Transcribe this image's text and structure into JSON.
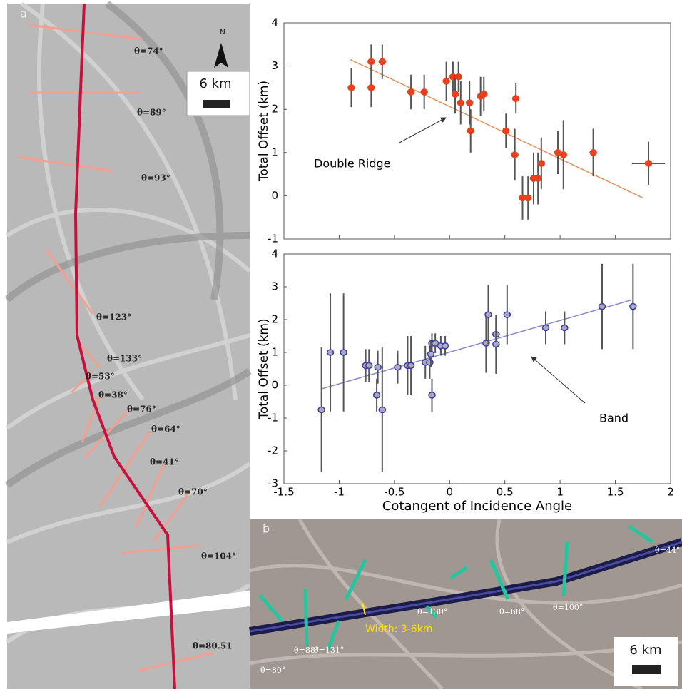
{
  "chart_data": [
    {
      "type": "scatter",
      "ylabel": "Total Offset (km)",
      "annotation": "Double Ridge",
      "color": "#e8401c",
      "fit_color": "#e8905a",
      "x": [
        -0.89,
        -0.71,
        -0.71,
        -0.61,
        -0.35,
        -0.23,
        -0.03,
        0.03,
        0.05,
        0.08,
        0.1,
        0.18,
        0.19,
        0.28,
        0.31,
        0.51,
        0.6,
        0.59,
        0.66,
        0.71,
        0.76,
        0.8,
        0.83,
        0.98,
        1.03,
        1.3,
        1.8
      ],
      "values": [
        2.5,
        2.5,
        3.1,
        3.1,
        2.4,
        2.4,
        2.65,
        2.75,
        2.35,
        2.75,
        2.15,
        2.15,
        1.5,
        2.3,
        2.35,
        1.5,
        2.25,
        0.95,
        -0.05,
        -0.05,
        0.4,
        0.4,
        0.75,
        1.0,
        0.95,
        1.0,
        0.75
      ],
      "errors": [
        0.45,
        0.45,
        0.4,
        0.4,
        0.4,
        0.4,
        0.45,
        0.35,
        0.45,
        0.35,
        0.5,
        0.5,
        0.5,
        0.45,
        0.4,
        0.4,
        0.35,
        0.6,
        0.5,
        0.5,
        0.6,
        0.6,
        0.6,
        0.5,
        0.8,
        0.55,
        0.5
      ],
      "xerrors": [
        null,
        null,
        null,
        null,
        null,
        null,
        null,
        null,
        null,
        null,
        null,
        null,
        null,
        null,
        null,
        null,
        null,
        null,
        null,
        null,
        null,
        null,
        null,
        null,
        null,
        null,
        0.15
      ],
      "fit": {
        "x": [
          -0.9,
          1.75
        ],
        "y": [
          3.15,
          -0.05
        ]
      },
      "xlim": [
        -1.5,
        2
      ],
      "ylim": [
        -1,
        4
      ],
      "yticks": [
        -1,
        0,
        1,
        2,
        3,
        4
      ],
      "xticks": [
        -1.5,
        -1,
        -0.5,
        0,
        0.5,
        1,
        1.5,
        2
      ]
    },
    {
      "type": "scatter",
      "ylabel": "Total Offset (km)",
      "xlabel": "Cotangent of Incidence Angle",
      "annotation": "Band",
      "color": "#3b3ba8",
      "fit_color": "#8a8ac8",
      "x": [
        -1.16,
        -1.08,
        -0.96,
        -0.76,
        -0.73,
        -0.65,
        -0.66,
        -0.61,
        -0.47,
        -0.38,
        -0.35,
        -0.22,
        -0.18,
        -0.16,
        -0.16,
        -0.13,
        -0.17,
        -0.08,
        -0.04,
        0.33,
        0.35,
        0.42,
        0.42,
        0.52,
        0.87,
        1.04,
        1.38,
        1.66
      ],
      "values": [
        -0.75,
        1.0,
        1.0,
        0.6,
        0.6,
        0.55,
        -0.3,
        -0.75,
        0.55,
        0.6,
        0.6,
        0.7,
        0.7,
        -0.3,
        1.28,
        1.28,
        0.95,
        1.2,
        1.2,
        1.28,
        2.15,
        1.55,
        1.25,
        2.15,
        1.75,
        1.75,
        2.4,
        2.4
      ],
      "errors": [
        1.9,
        1.8,
        1.8,
        0.5,
        0.5,
        0.5,
        0.5,
        1.9,
        0.5,
        0.9,
        0.9,
        0.5,
        0.5,
        0.5,
        0.3,
        0.3,
        0.4,
        0.3,
        0.3,
        0.9,
        0.9,
        0.5,
        0.9,
        0.9,
        0.5,
        0.5,
        1.3,
        1.3
      ],
      "xerrors": [
        null,
        null,
        null,
        null,
        null,
        null,
        null,
        null,
        null,
        null,
        null,
        null,
        null,
        null,
        null,
        null,
        null,
        null,
        null,
        null,
        null,
        null,
        null,
        null,
        null,
        null,
        null,
        null
      ],
      "fit": {
        "x": [
          -1.15,
          1.65
        ],
        "y": [
          -0.1,
          2.6
        ]
      },
      "xlim": [
        -1.5,
        2
      ],
      "ylim": [
        -3,
        4
      ],
      "yticks": [
        -3,
        -2,
        -1,
        0,
        1,
        2,
        3,
        4
      ],
      "xticks": [
        -1.5,
        -1,
        -0.5,
        0,
        0.5,
        1,
        1.5,
        2
      ]
    }
  ],
  "panels": {
    "a": {
      "label": "a",
      "north": "N",
      "scale": "6 km",
      "angles": [
        "θ=74°",
        "θ=89°",
        "θ=93°",
        "θ=123°",
        "θ=133°",
        "θ=53°",
        "θ=38°",
        "θ=76°",
        "θ=64°",
        "θ=41°",
        "θ=70°",
        "θ=104°",
        "θ=80.51"
      ]
    },
    "b": {
      "label": "b",
      "scale": "6 km",
      "width": "Width: 3-6km",
      "angles": [
        "θ=88°",
        "θ=131°",
        "θ=80°",
        "θ=130°",
        "θ=68°",
        "θ=100°",
        "θ=44°"
      ]
    }
  }
}
